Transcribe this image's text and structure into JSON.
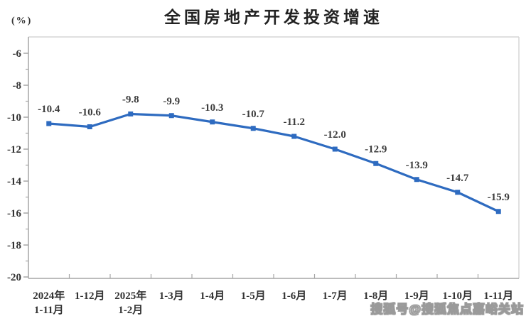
{
  "chart_data": {
    "type": "line",
    "title": "全国房地产开发投资增速",
    "unit_label": "(%)",
    "categories": [
      [
        "2024年",
        "1-11月"
      ],
      [
        "1-12月"
      ],
      [
        "2025年",
        "1-2月"
      ],
      [
        "1-3月"
      ],
      [
        "1-4月"
      ],
      [
        "1-5月"
      ],
      [
        "1-6月"
      ],
      [
        "1-7月"
      ],
      [
        "1-8月"
      ],
      [
        "1-9月"
      ],
      [
        "1-10月"
      ],
      [
        "1-11月"
      ]
    ],
    "series": [
      {
        "name": "全国房地产开发投资增速",
        "color": "#2E6BC0",
        "values": [
          -10.4,
          -10.6,
          -9.8,
          -9.9,
          -10.3,
          -10.7,
          -11.2,
          -12.0,
          -12.9,
          -13.9,
          -14.7,
          -15.9
        ],
        "data_labels": [
          "-10.4",
          "-10.6",
          "-9.8",
          "-9.9",
          "-10.3",
          "-10.7",
          "-11.2",
          "-12.0",
          "-12.9",
          "-13.9",
          "-14.7",
          "-15.9"
        ]
      }
    ],
    "xlabel": "",
    "ylabel": "",
    "ylim": [
      -20,
      -5
    ],
    "yticks": [
      -6,
      -8,
      -10,
      -12,
      -14,
      -16,
      -18,
      -20
    ],
    "minor_ytick_step": 1,
    "grid": false,
    "legend_position": "none",
    "marker": "square"
  },
  "watermark": {
    "text": "搜狐号@搜狐焦点嘉峪关站"
  },
  "colors": {
    "line": "#2E6BC0",
    "title_text": "#222222",
    "tick_text": "#333333",
    "data_label_text": "#3d3d3d",
    "axis_line": "#a6a6a6",
    "plot_border": "#d6d6d6",
    "watermark_outline": "#9a9a9a",
    "background": "#ffffff"
  }
}
